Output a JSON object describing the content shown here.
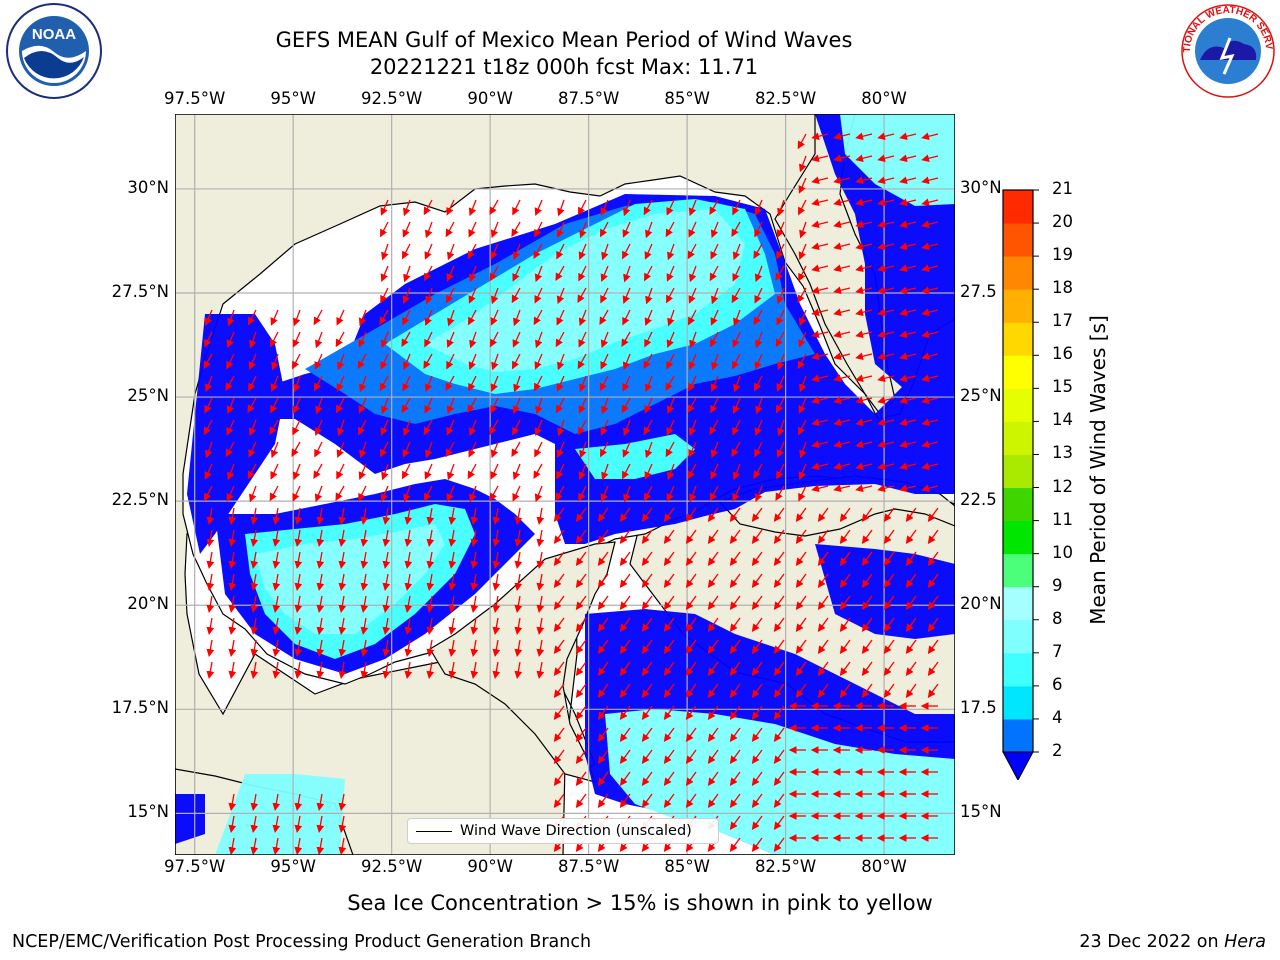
{
  "header": {
    "title_line1": "GEFS MEAN Gulf of Mexico Mean Period of Wind Waves",
    "title_line2": "20221221 t18z 000h fcst   Max: 11.71"
  },
  "logos": {
    "left": {
      "name": "noaa-logo",
      "text": "NOAA"
    },
    "right": {
      "name": "nws-logo",
      "text": "NATIONAL WEATHER SERVICE"
    }
  },
  "map": {
    "lon_labels": [
      "97.5°W",
      "95°W",
      "92.5°W",
      "90°W",
      "87.5°W",
      "85°W",
      "82.5°W",
      "80°W"
    ],
    "lat_labels_left": [
      "30°N",
      "27.5°N",
      "25°N",
      "22.5°N",
      "20°N",
      "17.5°N",
      "15°N"
    ],
    "lat_labels_right": [
      "30°N",
      "27.5",
      "25°N",
      "22.5",
      "20°N",
      "17.5",
      "15°N"
    ],
    "lon_values": [
      -97.5,
      -95,
      -92.5,
      -90,
      -87.5,
      -85,
      -82.5,
      -80
    ],
    "lat_values": [
      30,
      27.5,
      25,
      22.5,
      20,
      17.5,
      15
    ],
    "extent": {
      "lon": [
        -98,
        -78.2
      ],
      "lat": [
        14,
        31.8
      ]
    },
    "legend_label": "Wind Wave Direction (unscaled)",
    "colors": {
      "land": "#efeddb",
      "ocean_blank": "#ffffff",
      "grid": "#b0b0b0",
      "arrow": "#ff0000"
    }
  },
  "colorbar": {
    "label": "Mean Period of Wind Waves [s]",
    "ticks": [
      "2",
      "4",
      "6",
      "7",
      "8",
      "9",
      "10",
      "11",
      "12",
      "13",
      "14",
      "15",
      "16",
      "17",
      "18",
      "19",
      "20",
      "21"
    ],
    "colors": [
      "#0000ff",
      "#0073ff",
      "#00e6ff",
      "#40ffff",
      "#80ffff",
      "#a6ffff",
      "#4cff7a",
      "#00e600",
      "#3fd600",
      "#aaea00",
      "#cdf500",
      "#e6ff00",
      "#ffff00",
      "#ffd800",
      "#ffb000",
      "#ff8800",
      "#ff5500",
      "#ff2a00",
      "#ff0000"
    ]
  },
  "footer": {
    "note": "Sea Ice Concentration > 15% is shown in pink to yellow",
    "left": "NCEP/EMC/Verification Post Processing Product Generation Branch",
    "right_date": "23 Dec 2022 on",
    "right_machine": "Hera"
  }
}
